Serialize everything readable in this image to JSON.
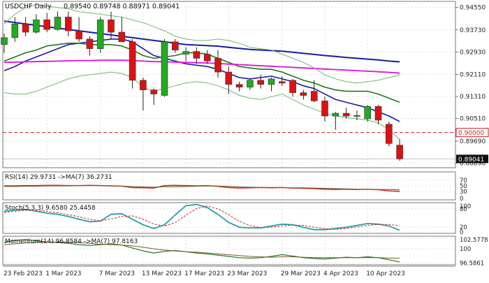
{
  "header": {
    "symbol": "USDCHF",
    "timeframe": "Daily",
    "ohlc": "0.89540 0.89748 0.88971 0.89041"
  },
  "colors": {
    "bull": "#22aa22",
    "bear": "#dd1111",
    "ma_blue": "#1a1aa8",
    "ma_green": "#1e7a1e",
    "ma_magenta": "#dd10dd",
    "bollinger": "#70b870",
    "level_line": "#cc2222",
    "rsi_line": "#cc2222",
    "rsi_ma": "#7a5c2a",
    "stoch_k": "#20a0a8",
    "stoch_d": "#cc2222",
    "momentum_line": "#1e7a1e",
    "momentum_ma": "#7a5c2a",
    "grid": "#cccccc"
  },
  "chart_data": [
    {
      "type": "candlestick",
      "title": "USDCHF Daily",
      "ohlc_readout": "0.89540 0.89748 0.88971 0.89041",
      "y_ticks": [
        "0.94550",
        "0.93730",
        "0.92930",
        "0.92110",
        "0.91310",
        "0.90510",
        "0.89690",
        "0.88890"
      ],
      "ylim": [
        0.8872,
        0.9477
      ],
      "marked_levels": [
        {
          "label": "0.90000",
          "value": 0.9,
          "style": "red-dashed"
        },
        {
          "label": "0.89041",
          "value": 0.89041,
          "style": "current-price"
        }
      ],
      "x_labels": [
        "23 Feb 2023",
        "1 Mar 2023",
        "7 Mar 2023",
        "13 Mar 2023",
        "17 Mar 2023",
        "23 Mar 2023",
        "29 Mar 2023",
        "4 Apr 2023",
        "10 Apr 2023"
      ],
      "candles": [
        {
          "o": 0.932,
          "h": 0.936,
          "l": 0.929,
          "c": 0.9345
        },
        {
          "o": 0.9345,
          "h": 0.942,
          "l": 0.933,
          "c": 0.9395
        },
        {
          "o": 0.9395,
          "h": 0.942,
          "l": 0.935,
          "c": 0.9365
        },
        {
          "o": 0.9365,
          "h": 0.943,
          "l": 0.936,
          "c": 0.941
        },
        {
          "o": 0.941,
          "h": 0.9435,
          "l": 0.9365,
          "c": 0.9375
        },
        {
          "o": 0.9375,
          "h": 0.944,
          "l": 0.937,
          "c": 0.942
        },
        {
          "o": 0.942,
          "h": 0.944,
          "l": 0.935,
          "c": 0.937
        },
        {
          "o": 0.937,
          "h": 0.942,
          "l": 0.933,
          "c": 0.934
        },
        {
          "o": 0.934,
          "h": 0.935,
          "l": 0.928,
          "c": 0.9305
        },
        {
          "o": 0.9305,
          "h": 0.942,
          "l": 0.929,
          "c": 0.941
        },
        {
          "o": 0.941,
          "h": 0.944,
          "l": 0.934,
          "c": 0.9365
        },
        {
          "o": 0.9365,
          "h": 0.942,
          "l": 0.933,
          "c": 0.933
        },
        {
          "o": 0.933,
          "h": 0.934,
          "l": 0.916,
          "c": 0.919
        },
        {
          "o": 0.919,
          "h": 0.92,
          "l": 0.908,
          "c": 0.9155
        },
        {
          "o": 0.9155,
          "h": 0.916,
          "l": 0.91,
          "c": 0.914
        },
        {
          "o": 0.9135,
          "h": 0.934,
          "l": 0.913,
          "c": 0.933
        },
        {
          "o": 0.933,
          "h": 0.934,
          "l": 0.929,
          "c": 0.93
        },
        {
          "o": 0.9285,
          "h": 0.931,
          "l": 0.926,
          "c": 0.9295
        },
        {
          "o": 0.9295,
          "h": 0.931,
          "l": 0.925,
          "c": 0.927
        },
        {
          "o": 0.9285,
          "h": 0.93,
          "l": 0.925,
          "c": 0.926
        },
        {
          "o": 0.927,
          "h": 0.93,
          "l": 0.92,
          "c": 0.922
        },
        {
          "o": 0.922,
          "h": 0.924,
          "l": 0.914,
          "c": 0.9175
        },
        {
          "o": 0.9175,
          "h": 0.9185,
          "l": 0.915,
          "c": 0.9165
        },
        {
          "o": 0.9165,
          "h": 0.9195,
          "l": 0.9155,
          "c": 0.919
        },
        {
          "o": 0.919,
          "h": 0.921,
          "l": 0.916,
          "c": 0.9175
        },
        {
          "o": 0.9175,
          "h": 0.92,
          "l": 0.915,
          "c": 0.9195
        },
        {
          "o": 0.9185,
          "h": 0.9205,
          "l": 0.917,
          "c": 0.918
        },
        {
          "o": 0.919,
          "h": 0.9195,
          "l": 0.913,
          "c": 0.9145
        },
        {
          "o": 0.9145,
          "h": 0.9155,
          "l": 0.912,
          "c": 0.9135
        },
        {
          "o": 0.915,
          "h": 0.919,
          "l": 0.911,
          "c": 0.9115
        },
        {
          "o": 0.9115,
          "h": 0.913,
          "l": 0.904,
          "c": 0.906
        },
        {
          "o": 0.906,
          "h": 0.9075,
          "l": 0.901,
          "c": 0.907
        },
        {
          "o": 0.907,
          "h": 0.909,
          "l": 0.905,
          "c": 0.906
        },
        {
          "o": 0.906,
          "h": 0.908,
          "l": 0.9045,
          "c": 0.9062
        },
        {
          "o": 0.905,
          "h": 0.91,
          "l": 0.904,
          "c": 0.9095
        },
        {
          "o": 0.9095,
          "h": 0.91,
          "l": 0.903,
          "c": 0.9045
        },
        {
          "o": 0.903,
          "h": 0.904,
          "l": 0.895,
          "c": 0.896
        },
        {
          "o": 0.8954,
          "h": 0.8975,
          "l": 0.8897,
          "c": 0.8904
        }
      ],
      "overlays": [
        {
          "style": "blue",
          "values": [
            0.9225,
            0.924,
            0.926,
            0.9275,
            0.929,
            0.9305,
            0.932,
            0.9325,
            0.933,
            0.9335,
            0.934,
            0.934,
            0.933,
            0.9305,
            0.928,
            0.927,
            0.926,
            0.925,
            0.9245,
            0.924,
            0.923,
            0.9215,
            0.92,
            0.9195,
            0.92,
            0.9205,
            0.9195,
            0.9185,
            0.917,
            0.916,
            0.914,
            0.912,
            0.911,
            0.91,
            0.909,
            0.9075,
            0.906,
            0.904
          ]
        },
        {
          "style": "green",
          "values": [
            0.926,
            0.9275,
            0.929,
            0.93,
            0.9315,
            0.932,
            0.9325,
            0.9325,
            0.932,
            0.932,
            0.932,
            0.9315,
            0.93,
            0.928,
            0.927,
            0.9275,
            0.928,
            0.929,
            0.929,
            0.9285,
            0.927,
            0.9255,
            0.924,
            0.9235,
            0.923,
            0.923,
            0.922,
            0.9205,
            0.919,
            0.918,
            0.9165,
            0.9155,
            0.915,
            0.915,
            0.915,
            0.914,
            0.9125,
            0.911
          ]
        },
        {
          "style": "navy",
          "values": [
            0.9405,
            0.94,
            0.9395,
            0.939,
            0.9385,
            0.938,
            0.9375,
            0.937,
            0.9365,
            0.936,
            0.9355,
            0.935,
            0.9345,
            0.934,
            0.9335,
            0.933,
            0.9325,
            0.932,
            0.9318,
            0.9316,
            0.9314,
            0.931,
            0.9306,
            0.9302,
            0.93,
            0.9298,
            0.9296,
            0.9292,
            0.9288,
            0.9284,
            0.928,
            0.9277,
            0.9273,
            0.927,
            0.9267,
            0.9264,
            0.926,
            0.9257
          ]
        },
        {
          "style": "magenta",
          "values": [
            0.9255,
            0.9256,
            0.9257,
            0.9258,
            0.9259,
            0.926,
            0.9261,
            0.9262,
            0.9262,
            0.9263,
            0.9263,
            0.9263,
            0.9262,
            0.926,
            0.9258,
            0.9257,
            0.9256,
            0.9255,
            0.9254,
            0.9253,
            0.9251,
            0.9249,
            0.9247,
            0.9245,
            0.9243,
            0.9241,
            0.9239,
            0.9237,
            0.9235,
            0.9233,
            0.9231,
            0.9229,
            0.9227,
            0.9225,
            0.9223,
            0.9221,
            0.9219,
            0.9216
          ]
        },
        {
          "style": "band",
          "values": [
            0.9395,
            0.943,
            0.9455,
            0.9465,
            0.946,
            0.9455,
            0.945,
            0.944,
            0.9435,
            0.943,
            0.9425,
            0.942,
            0.941,
            0.94,
            0.9385,
            0.937,
            0.935,
            0.934,
            0.9335,
            0.9335,
            0.934,
            0.9335,
            0.9325,
            0.931,
            0.9305,
            0.93,
            0.9285,
            0.927,
            0.9255,
            0.9235,
            0.921,
            0.9195,
            0.9185,
            0.918,
            0.9185,
            0.919,
            0.92,
            0.921
          ]
        },
        {
          "style": "band",
          "values": [
            0.9145,
            0.914,
            0.914,
            0.915,
            0.9165,
            0.918,
            0.9195,
            0.9205,
            0.921,
            0.9215,
            0.922,
            0.9215,
            0.92,
            0.9165,
            0.915,
            0.916,
            0.917,
            0.918,
            0.9185,
            0.918,
            0.917,
            0.9155,
            0.9135,
            0.9125,
            0.912,
            0.913,
            0.914,
            0.912,
            0.91,
            0.9085,
            0.907,
            0.906,
            0.9055,
            0.905,
            0.9045,
            0.9035,
            0.901,
            0.8975
          ]
        }
      ]
    },
    {
      "type": "line",
      "title": "RSI(14) 29.9731 ->MA(7) 36.2731",
      "y_ticks": [
        "70",
        "50",
        "30",
        "0"
      ],
      "ylim": [
        0,
        100
      ],
      "series": [
        {
          "style": "rsi",
          "values": [
            50,
            50,
            51,
            51,
            52,
            52,
            51,
            51,
            52,
            51,
            50,
            49,
            44,
            43,
            42,
            51,
            52,
            51,
            50,
            51,
            48,
            44,
            42,
            43,
            44,
            43,
            44,
            42,
            41,
            40,
            38,
            37,
            38,
            37,
            38,
            36,
            32,
            30
          ]
        },
        {
          "style": "rsi_ma",
          "values": [
            48,
            48,
            49,
            49,
            50,
            50,
            50,
            51,
            51,
            51,
            50,
            49,
            47,
            46,
            45,
            47,
            47,
            48,
            49,
            50,
            49,
            48,
            46,
            45,
            44,
            44,
            44,
            43,
            43,
            42,
            41,
            40,
            39,
            38,
            38,
            37,
            37,
            36
          ]
        }
      ]
    },
    {
      "type": "line",
      "title": "Stoch(5,3,3) 9.6580 25.4458",
      "y_ticks": [
        "100",
        "80",
        "20",
        "0"
      ],
      "ylim": [
        0,
        100
      ],
      "series": [
        {
          "style": "k",
          "values": [
            72,
            76,
            78,
            72,
            66,
            62,
            55,
            46,
            38,
            40,
            62,
            64,
            46,
            28,
            16,
            28,
            60,
            90,
            94,
            84,
            62,
            36,
            20,
            18,
            18,
            24,
            30,
            28,
            20,
            12,
            12,
            16,
            20,
            26,
            32,
            30,
            24,
            10
          ]
        },
        {
          "style": "d",
          "values": [
            68,
            72,
            75,
            75,
            72,
            67,
            61,
            54,
            46,
            41,
            47,
            55,
            57,
            46,
            30,
            24,
            35,
            59,
            81,
            89,
            80,
            61,
            39,
            25,
            19,
            20,
            24,
            27,
            26,
            20,
            15,
            13,
            16,
            21,
            26,
            29,
            29,
            25
          ]
        }
      ]
    },
    {
      "type": "line",
      "title": "Momentum(14) 96.8584 ->MA(7) 97.8163",
      "y_ticks": [
        "102.5778",
        "100",
        "96.5861"
      ],
      "ylim": [
        96.2,
        103.0
      ],
      "series": [
        {
          "style": "momentum",
          "values": [
            101.5,
            102.0,
            102.2,
            101.9,
            101.6,
            101.5,
            101.3,
            101.0,
            100.8,
            101.0,
            101.2,
            100.9,
            100.2,
            99.5,
            99.0,
            99.4,
            99.6,
            99.3,
            99.0,
            98.8,
            98.5,
            98.2,
            97.9,
            97.8,
            97.9,
            98.2,
            98.6,
            98.3,
            97.9,
            97.7,
            97.6,
            97.8,
            98.0,
            97.9,
            98.1,
            97.9,
            97.4,
            96.9
          ]
        },
        {
          "style": "momentum_ma",
          "values": [
            101.0,
            101.2,
            101.4,
            101.5,
            101.6,
            101.6,
            101.6,
            101.5,
            101.3,
            101.1,
            101.0,
            100.9,
            100.7,
            100.4,
            100.0,
            99.7,
            99.5,
            99.3,
            99.2,
            99.0,
            98.8,
            98.6,
            98.4,
            98.2,
            98.1,
            98.0,
            98.1,
            98.1,
            98.0,
            97.9,
            97.9,
            97.9,
            97.9,
            97.9,
            97.9,
            97.9,
            97.8,
            97.8
          ]
        }
      ]
    }
  ]
}
